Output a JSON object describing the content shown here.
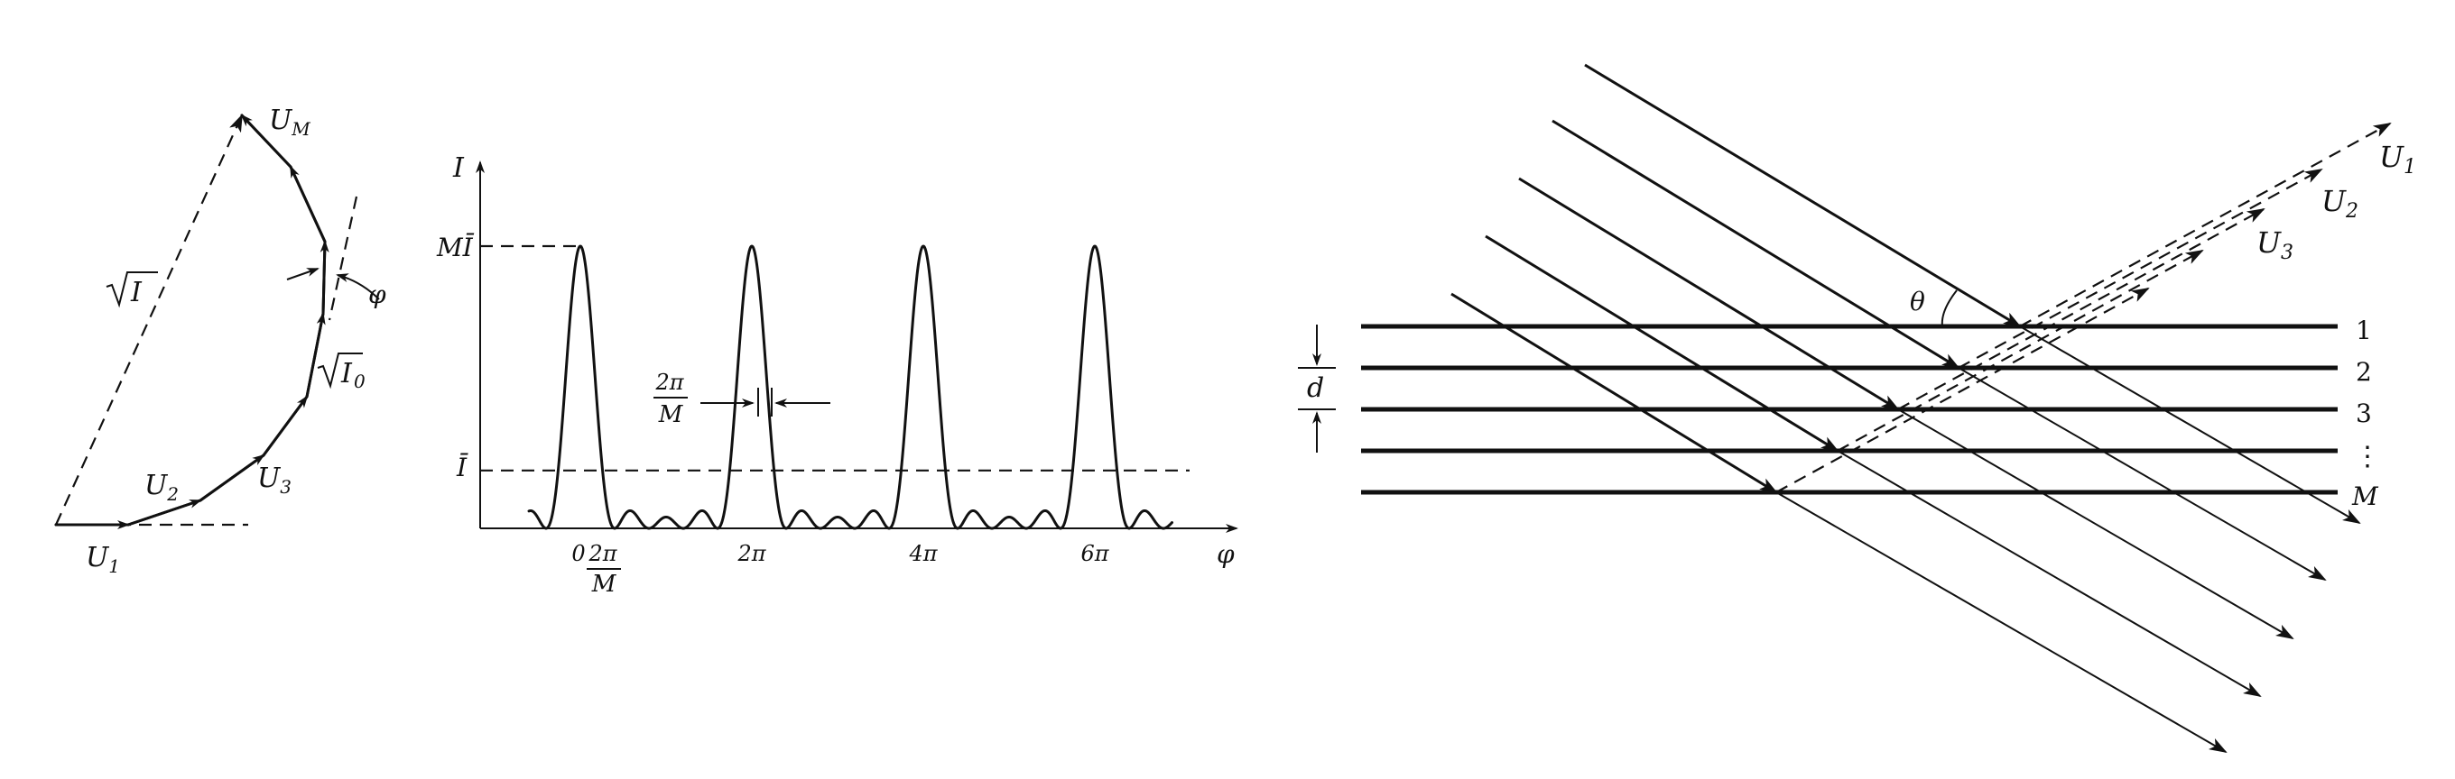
{
  "phasor": {
    "labels": {
      "um": "U",
      "um_sub": "M",
      "u1": "U",
      "u1_sub": "1",
      "u2": "U",
      "u2_sub": "2",
      "u3": "U",
      "u3_sub": "3",
      "sqrt_i": "I",
      "sqrt_i0": "I",
      "sqrt_i0_sub": "0",
      "phi": "φ"
    }
  },
  "chart_data": {
    "type": "line",
    "title": "",
    "ylabel": "I",
    "xlabel": "φ",
    "series_description": "multi-slit interference intensity with principal maxima at 0, 2π, 4π, 6π and small secondary maxima between",
    "peaks_at": [
      "0",
      "2π",
      "4π",
      "6π"
    ],
    "x_tick_labels": [
      "0",
      "2π",
      "4π",
      "6π"
    ],
    "x_tick_values_pi": [
      0,
      2,
      4,
      6
    ],
    "y_labels": {
      "max": "MĪ",
      "mean": "Ī"
    },
    "peak_value_ratio": 1.0,
    "mean_value_ratio": 0.205,
    "annotation_width": {
      "num": "2π",
      "den": "M"
    },
    "annotation_tick": {
      "num": "2π",
      "den": "M"
    }
  },
  "reflection": {
    "labels": {
      "theta": "θ",
      "d": "d",
      "u1": "U",
      "u1_sub": "1",
      "u2": "U",
      "u2_sub": "2",
      "u3": "U",
      "u3_sub": "3"
    },
    "plate_labels": [
      "1",
      "2",
      "3",
      "⋮",
      "M"
    ]
  }
}
